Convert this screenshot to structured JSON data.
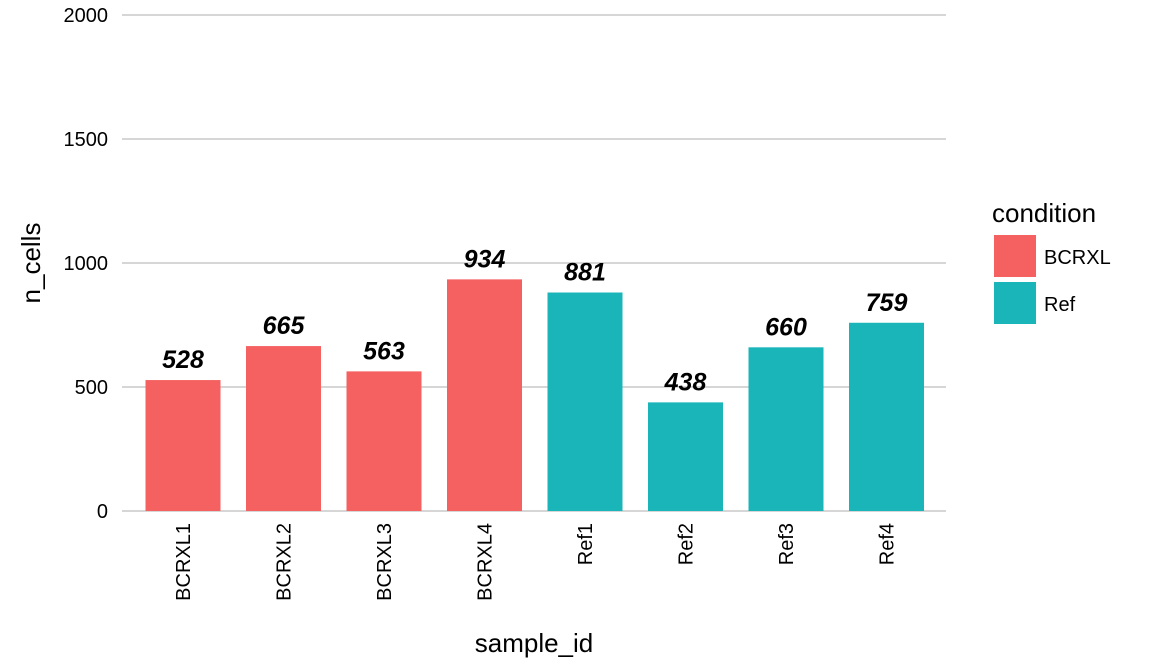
{
  "chart_data": {
    "type": "bar",
    "categories": [
      "BCRXL1",
      "BCRXL2",
      "BCRXL3",
      "BCRXL4",
      "Ref1",
      "Ref2",
      "Ref3",
      "Ref4"
    ],
    "values": [
      528,
      665,
      563,
      934,
      881,
      438,
      660,
      759
    ],
    "data_labels": [
      "528",
      "665",
      "563",
      "934",
      "881",
      "438",
      "660",
      "759"
    ],
    "groups": [
      "BCRXL",
      "BCRXL",
      "BCRXL",
      "BCRXL",
      "Ref",
      "Ref",
      "Ref",
      "Ref"
    ],
    "xlabel": "sample_id",
    "ylabel": "n_cells",
    "ylim": [
      0,
      2000
    ],
    "yticks": [
      0,
      500,
      1000,
      1500,
      2000
    ],
    "ytick_labels": [
      "0",
      "500",
      "1000",
      "1500",
      "2000"
    ],
    "grid": true,
    "legend": {
      "title": "condition",
      "placement": "right",
      "entries": [
        {
          "label": "BCRXL",
          "color": "#F46160"
        },
        {
          "label": "Ref",
          "color": "#19B5B9"
        }
      ]
    }
  }
}
